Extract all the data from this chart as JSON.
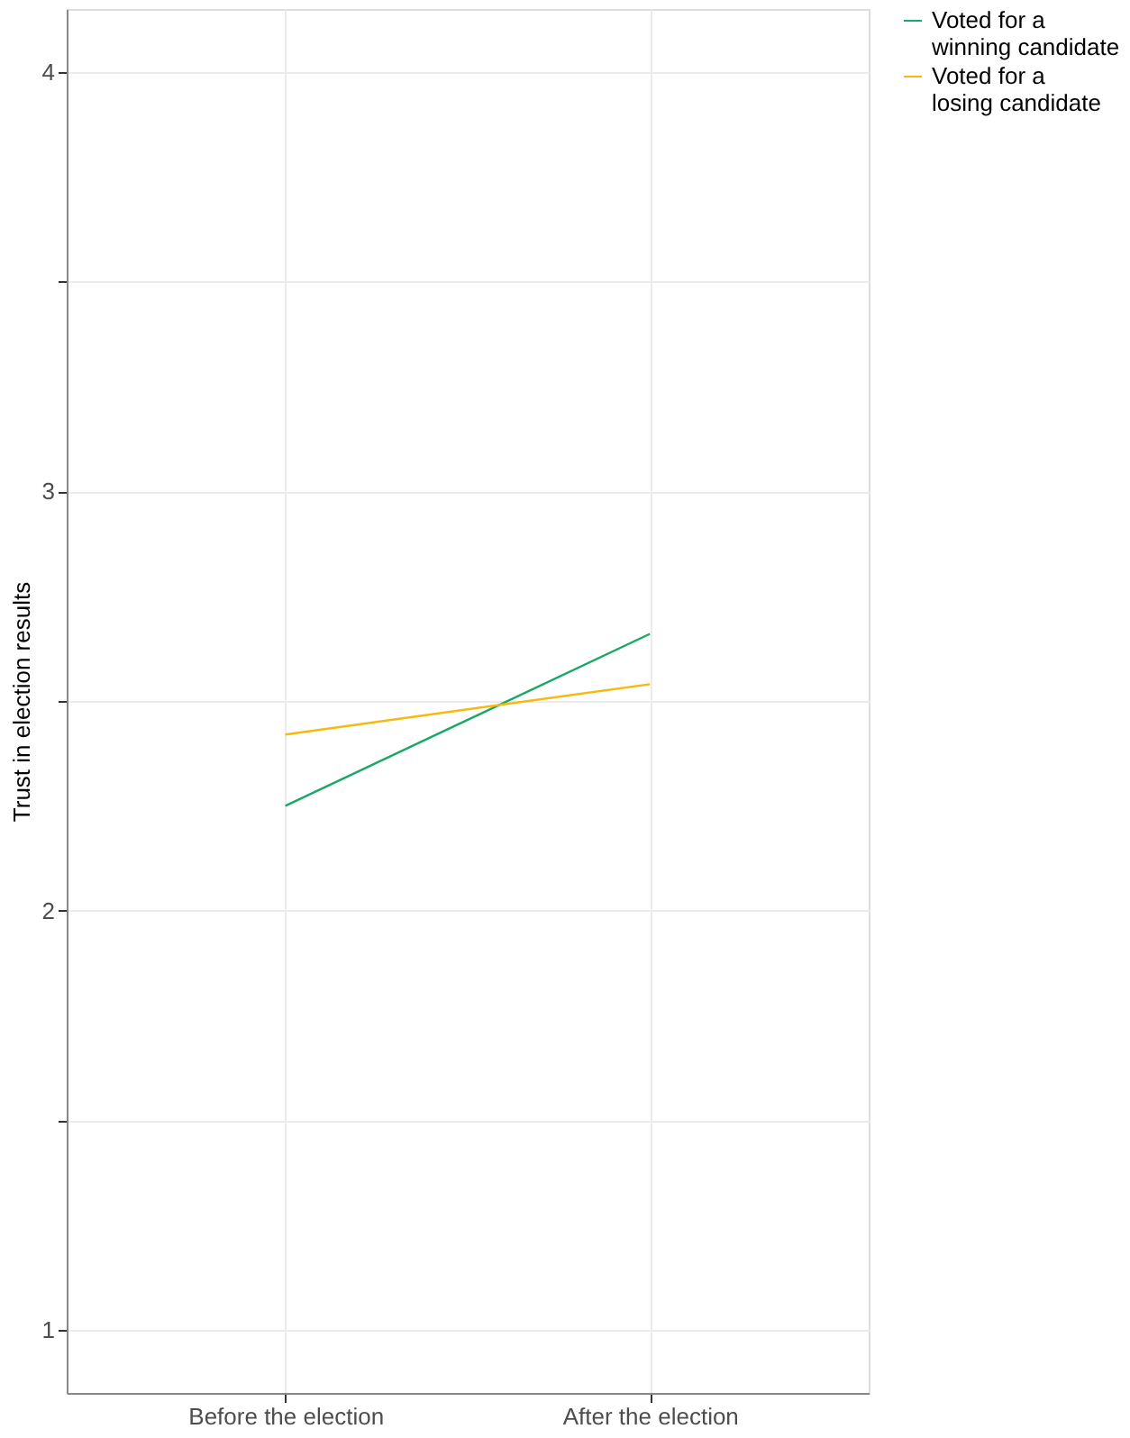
{
  "chart_data": {
    "type": "line",
    "ylabel": "Trust in election results",
    "categories": [
      "Before the election",
      "After the election"
    ],
    "series": [
      {
        "name": "Voted for a\nwinning candidate",
        "color": "#1aa866",
        "values": [
          2.25,
          2.66
        ]
      },
      {
        "name": "Voted for a\nlosing candidate",
        "color": "#f5b90f",
        "values": [
          2.42,
          2.54
        ]
      }
    ],
    "ylim": [
      0.85,
      4.15
    ],
    "yticks": [
      1,
      {
        "value": 1.5,
        "label": null
      },
      2,
      {
        "value": 2.5,
        "label": null
      },
      3,
      {
        "value": 3.5,
        "label": null
      },
      4
    ],
    "grid": true,
    "legend": "right",
    "marker": "none",
    "line_style": "solid"
  }
}
